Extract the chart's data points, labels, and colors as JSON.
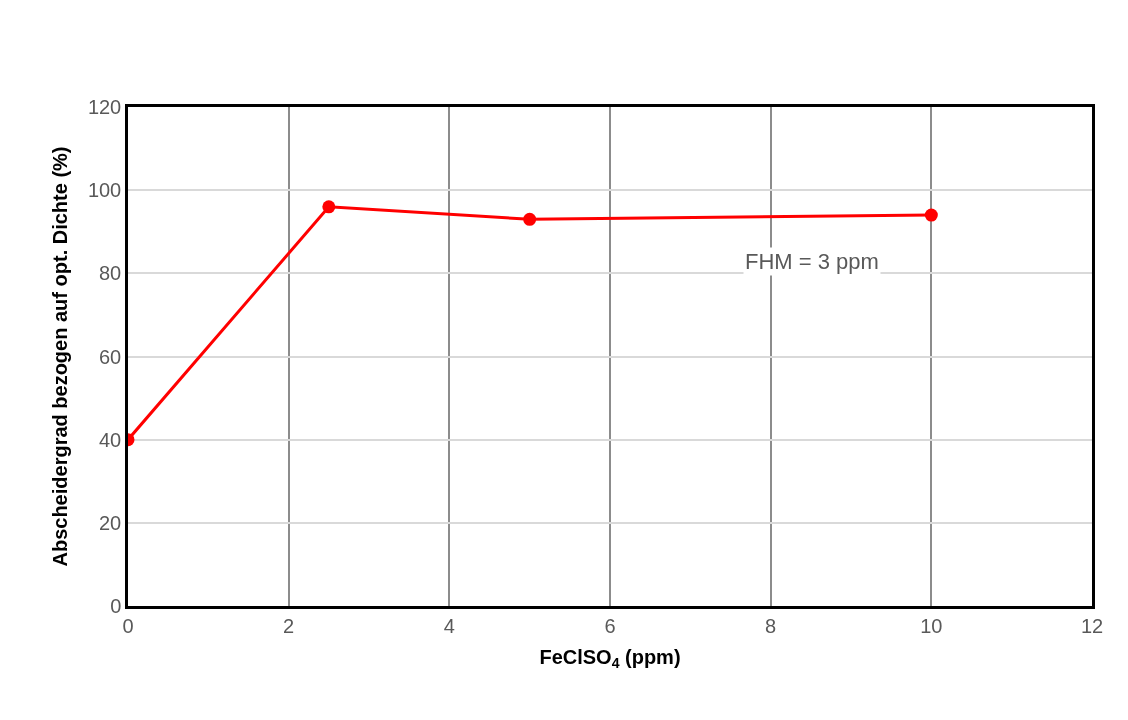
{
  "chart_data": {
    "type": "line",
    "xlabel": "FeClSO$_{4}$ (ppm)",
    "ylabel": "Abscheidergrad bezogen auf opt. Dichte (%)",
    "x": [
      0,
      2.5,
      5,
      10
    ],
    "series": [
      {
        "color": "#ff0000",
        "values": [
          40,
          96,
          93,
          94
        ]
      }
    ],
    "xlim": [
      0,
      12
    ],
    "xticks": [
      0,
      2,
      4,
      6,
      8,
      10,
      12
    ],
    "ylim": [
      0,
      120
    ],
    "yticks": [
      0,
      20,
      40,
      60,
      80,
      100,
      120
    ],
    "grid": true,
    "marker": "circle",
    "line_style": "solid",
    "annotations": [
      "FHM = 3 ppm"
    ]
  }
}
